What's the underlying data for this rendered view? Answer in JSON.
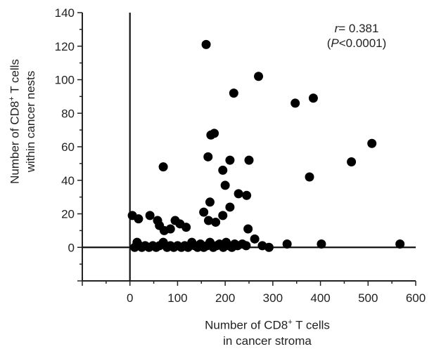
{
  "chart_data": {
    "type": "scatter",
    "xlabel_line1": "Number of CD8",
    "xlabel_sup": "+",
    "xlabel_line1_rest": " T cells",
    "xlabel_line2": "in cancer stroma",
    "ylabel_line1": "Number of CD8",
    "ylabel_sup": "+",
    "ylabel_line1_rest": " T cells",
    "ylabel_line2": "within cancer nests",
    "xlim": [
      -100,
      600
    ],
    "ylim": [
      -20,
      140
    ],
    "x_ticks": [
      0,
      100,
      200,
      300,
      400,
      500,
      600
    ],
    "y_ticks": [
      0,
      20,
      40,
      60,
      80,
      100,
      120,
      140
    ],
    "annotation": {
      "r_label": "r",
      "r_value": "= 0.381",
      "p_open": "(",
      "p_label": "P",
      "p_value": "<0.0001)"
    },
    "marker_color": "#000000",
    "points": [
      [
        160,
        121
      ],
      [
        270,
        102
      ],
      [
        218,
        92
      ],
      [
        385,
        89
      ],
      [
        347,
        86
      ],
      [
        170,
        67
      ],
      [
        177,
        68
      ],
      [
        508,
        62
      ],
      [
        164,
        54
      ],
      [
        210,
        52
      ],
      [
        250,
        52
      ],
      [
        465,
        51
      ],
      [
        70,
        48
      ],
      [
        195,
        46
      ],
      [
        377,
        42
      ],
      [
        200,
        37
      ],
      [
        228,
        32
      ],
      [
        245,
        31
      ],
      [
        168,
        27
      ],
      [
        210,
        24
      ],
      [
        155,
        21
      ],
      [
        5,
        19
      ],
      [
        42,
        19
      ],
      [
        18,
        17
      ],
      [
        58,
        16
      ],
      [
        95,
        16
      ],
      [
        105,
        14
      ],
      [
        165,
        16
      ],
      [
        180,
        15
      ],
      [
        62,
        13
      ],
      [
        118,
        12
      ],
      [
        72,
        10
      ],
      [
        85,
        11
      ],
      [
        195,
        19
      ],
      [
        248,
        11
      ],
      [
        15,
        3
      ],
      [
        10,
        0
      ],
      [
        20,
        1
      ],
      [
        25,
        0
      ],
      [
        32,
        1
      ],
      [
        40,
        0
      ],
      [
        48,
        1
      ],
      [
        55,
        0
      ],
      [
        62,
        1
      ],
      [
        70,
        3
      ],
      [
        78,
        0
      ],
      [
        85,
        1
      ],
      [
        92,
        0
      ],
      [
        100,
        1
      ],
      [
        108,
        0
      ],
      [
        115,
        1
      ],
      [
        122,
        0
      ],
      [
        130,
        3
      ],
      [
        136,
        1
      ],
      [
        142,
        0
      ],
      [
        148,
        2
      ],
      [
        155,
        0
      ],
      [
        162,
        1
      ],
      [
        168,
        3
      ],
      [
        175,
        0
      ],
      [
        182,
        1
      ],
      [
        188,
        2
      ],
      [
        196,
        0
      ],
      [
        202,
        3
      ],
      [
        208,
        1
      ],
      [
        214,
        0
      ],
      [
        220,
        2
      ],
      [
        226,
        1
      ],
      [
        236,
        2
      ],
      [
        244,
        1
      ],
      [
        262,
        5
      ],
      [
        278,
        1
      ],
      [
        292,
        0
      ],
      [
        330,
        2
      ],
      [
        402,
        2
      ],
      [
        567,
        2
      ]
    ]
  }
}
